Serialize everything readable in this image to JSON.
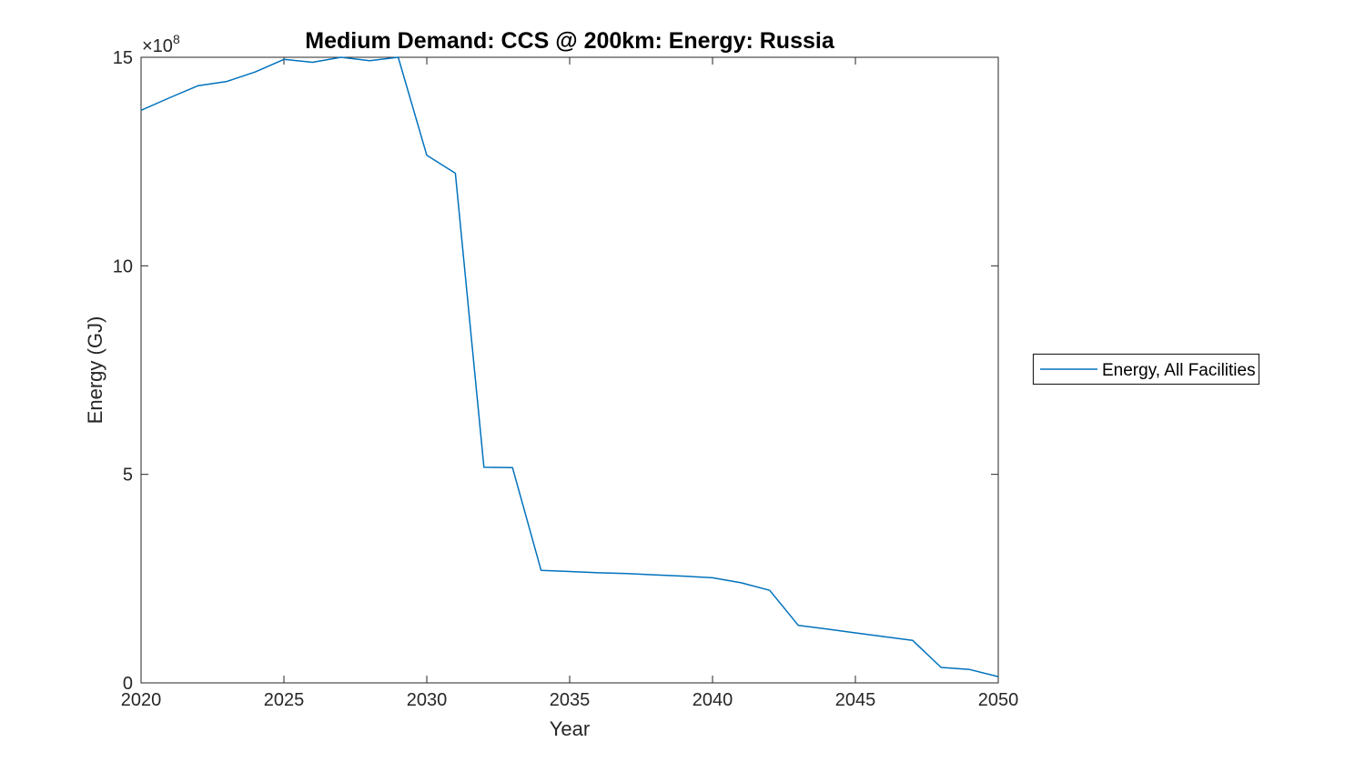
{
  "chart_data": {
    "type": "line",
    "title": "Medium Demand: CCS @ 200km: Energy: Russia",
    "xlabel": "Year",
    "ylabel": "Energy (GJ)",
    "y_offset_label": {
      "base": "×10",
      "exp": "8"
    },
    "y_unit_multiplier": "1e8 GJ per unit on y-axis",
    "xlim": [
      2020,
      2050
    ],
    "ylim": [
      0,
      15
    ],
    "grid": false,
    "legend_position": "outside-right",
    "xticks": {
      "values": [
        2020,
        2025,
        2030,
        2035,
        2040,
        2045,
        2050
      ],
      "labels": [
        "2020",
        "2025",
        "2030",
        "2035",
        "2040",
        "2045",
        "2050"
      ]
    },
    "yticks": {
      "values": [
        0,
        5,
        10,
        15
      ],
      "labels": [
        "0",
        "5",
        "10",
        "15"
      ]
    },
    "series": [
      {
        "name": "Energy, All Facilities",
        "color": "#0072BD",
        "x": [
          2020,
          2021,
          2022,
          2023,
          2024,
          2025,
          2026,
          2027,
          2028,
          2029,
          2030,
          2031,
          2032,
          2033,
          2034,
          2035,
          2036,
          2037,
          2038,
          2039,
          2040,
          2041,
          2042,
          2043,
          2044,
          2045,
          2046,
          2047,
          2048,
          2049,
          2050
        ],
        "values": [
          13.73,
          14.03,
          14.32,
          14.42,
          14.65,
          14.95,
          14.88,
          15.0,
          14.92,
          15.0,
          12.65,
          12.22,
          5.17,
          5.16,
          2.7,
          2.67,
          2.64,
          2.62,
          2.59,
          2.56,
          2.52,
          2.4,
          2.22,
          1.38,
          1.29,
          1.2,
          1.11,
          1.02,
          0.37,
          0.32,
          0.15
        ]
      }
    ],
    "colors": {
      "line": "#0072BD",
      "axis": "#262626",
      "title": "#000000",
      "background": "#ffffff"
    }
  }
}
